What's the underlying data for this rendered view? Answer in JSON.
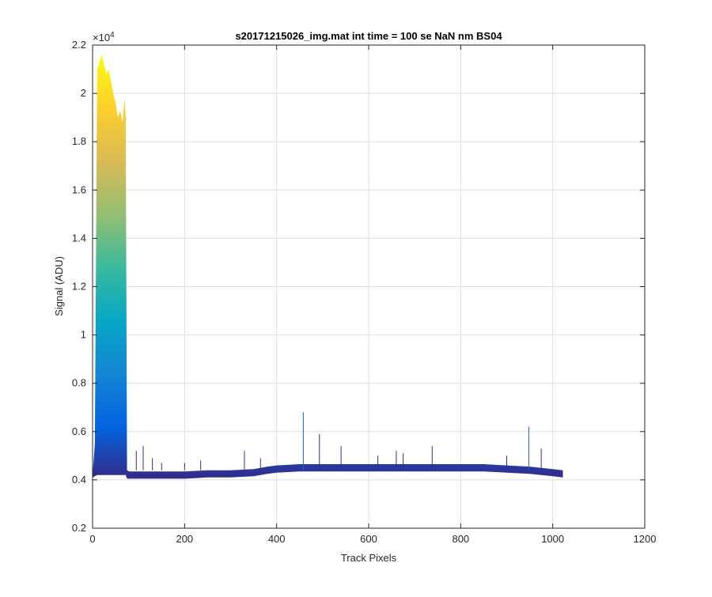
{
  "chart_data": {
    "type": "area",
    "title": "s20171215026_img.mat int time = 100 se  NaN nm BS04",
    "xlabel": "Track Pixels",
    "ylabel": "Signal (ADU)",
    "xlim": [
      0,
      1200
    ],
    "ylim": [
      2000,
      22000
    ],
    "x_ticks": [
      0,
      200,
      400,
      600,
      800,
      1000,
      1200
    ],
    "x_tick_labels": [
      "0",
      "200",
      "400",
      "600",
      "800",
      "1000",
      "1200"
    ],
    "y_ticks": [
      2000,
      4000,
      6000,
      8000,
      10000,
      12000,
      14000,
      16000,
      18000,
      20000,
      22000
    ],
    "y_tick_labels": [
      "0.2",
      "0.4",
      "0.6",
      "0.8",
      "1",
      "1.2",
      "1.4",
      "1.6",
      "1.8",
      "2",
      "2.2"
    ],
    "y_exponent_label": "×10",
    "y_exponent_power": "4",
    "grid": true,
    "colormap": [
      "#352a87",
      "#0363e1",
      "#1485d4",
      "#06a7c6",
      "#38b99e",
      "#92bf73",
      "#d9ba56",
      "#fcce2e",
      "#f9fb0e"
    ],
    "series": [
      {
        "x": [
          0,
          5,
          10,
          15,
          20,
          25,
          30,
          35,
          40,
          45,
          50,
          55,
          60,
          65,
          70,
          72,
          75,
          80,
          100,
          150,
          200,
          250,
          300,
          350,
          380,
          400,
          450,
          500,
          550,
          600,
          650,
          700,
          750,
          800,
          850,
          900,
          950,
          1000,
          1022
        ],
        "y_upper": [
          4200,
          5500,
          21000,
          21300,
          21600,
          21200,
          20800,
          21000,
          20500,
          20000,
          19600,
          19000,
          19300,
          18800,
          19800,
          19000,
          4400,
          4350,
          4350,
          4350,
          4350,
          4400,
          4400,
          4450,
          4550,
          4600,
          4650,
          4650,
          4650,
          4650,
          4650,
          4650,
          4650,
          4650,
          4650,
          4600,
          4550,
          4450,
          4400
        ],
        "y_lower": [
          4100,
          4150,
          4200,
          4200,
          4200,
          4200,
          4200,
          4200,
          4200,
          4200,
          4200,
          4200,
          4200,
          4200,
          4200,
          4200,
          4050,
          4050,
          4050,
          4050,
          4050,
          4100,
          4100,
          4150,
          4250,
          4300,
          4350,
          4350,
          4350,
          4350,
          4350,
          4350,
          4350,
          4350,
          4350,
          4300,
          4250,
          4150,
          4100
        ]
      }
    ],
    "spikes": [
      {
        "x": 95,
        "y": 5200
      },
      {
        "x": 110,
        "y": 5400
      },
      {
        "x": 130,
        "y": 4900
      },
      {
        "x": 150,
        "y": 4700
      },
      {
        "x": 200,
        "y": 4700
      },
      {
        "x": 235,
        "y": 4800
      },
      {
        "x": 330,
        "y": 5200
      },
      {
        "x": 365,
        "y": 4900
      },
      {
        "x": 458,
        "y": 6800
      },
      {
        "x": 493,
        "y": 5900
      },
      {
        "x": 540,
        "y": 5400
      },
      {
        "x": 620,
        "y": 5000
      },
      {
        "x": 660,
        "y": 5200
      },
      {
        "x": 675,
        "y": 5100
      },
      {
        "x": 738,
        "y": 5400
      },
      {
        "x": 900,
        "y": 5000
      },
      {
        "x": 948,
        "y": 6200
      },
      {
        "x": 975,
        "y": 5300
      }
    ]
  }
}
